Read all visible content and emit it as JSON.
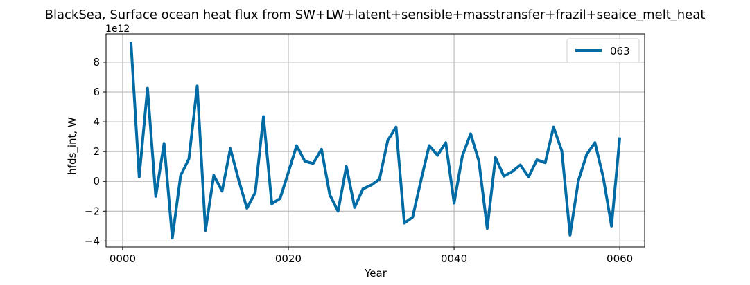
{
  "chart_data": {
    "type": "line",
    "title": "BlackSea, Surface ocean heat flux from SW+LW+latent+sensible+masstransfer+frazil+seaice_melt_heat",
    "xlabel": "Year",
    "ylabel": "hfds_int, W",
    "y_offset_label": "1e12",
    "y_scale_factor": 1000000000000.0,
    "xlim": [
      -2,
      63
    ],
    "ylim": [
      -4.4,
      9.9
    ],
    "x_ticks": [
      0,
      20,
      40,
      60
    ],
    "x_tick_labels": [
      "0000",
      "0020",
      "0040",
      "0060"
    ],
    "y_ticks": [
      -4,
      -2,
      0,
      2,
      4,
      6,
      8
    ],
    "y_tick_labels": [
      "−4",
      "−2",
      "0",
      "2",
      "4",
      "6",
      "8"
    ],
    "grid": true,
    "legend_position": "top-right",
    "series": [
      {
        "name": "063",
        "color": "#006ba4",
        "x": [
          1,
          2,
          3,
          4,
          5,
          6,
          7,
          8,
          9,
          10,
          11,
          12,
          13,
          14,
          15,
          16,
          17,
          18,
          19,
          20,
          21,
          22,
          23,
          24,
          25,
          26,
          27,
          28,
          29,
          30,
          31,
          32,
          33,
          34,
          35,
          36,
          37,
          38,
          39,
          40,
          41,
          42,
          43,
          44,
          45,
          46,
          47,
          48,
          49,
          50,
          51,
          52,
          53,
          54,
          55,
          56,
          57,
          58,
          59,
          60
        ],
        "values": [
          9.35,
          0.3,
          6.25,
          -1.0,
          2.55,
          -3.8,
          0.4,
          1.5,
          6.4,
          -3.3,
          0.4,
          -0.65,
          2.2,
          0.1,
          -1.8,
          -0.75,
          4.35,
          -1.5,
          -1.15,
          0.6,
          2.4,
          1.35,
          1.2,
          2.15,
          -0.9,
          -2.0,
          1.0,
          -1.75,
          -0.5,
          -0.25,
          0.15,
          2.75,
          3.65,
          -2.8,
          -2.4,
          0.05,
          2.4,
          1.75,
          2.6,
          -1.45,
          1.7,
          3.2,
          1.35,
          -3.15,
          1.6,
          0.35,
          0.65,
          1.1,
          0.3,
          1.45,
          1.25,
          3.65,
          2.05,
          -3.6,
          0.05,
          1.8,
          2.6,
          0.3,
          -3.0,
          2.95
        ]
      }
    ]
  }
}
